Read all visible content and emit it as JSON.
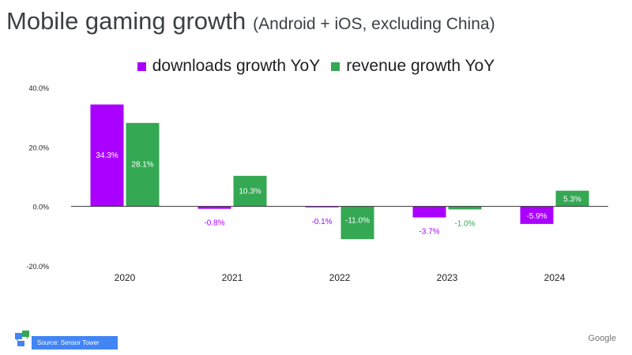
{
  "title": {
    "main": "Mobile gaming growth",
    "sub": "(Android + iOS, excluding China)"
  },
  "colors": {
    "downloads": "#aa00ff",
    "revenue": "#34a853",
    "source_badge": "#4285f4"
  },
  "chart_data": {
    "type": "bar",
    "title": "Mobile gaming growth (Android + iOS, excluding China)",
    "categories": [
      "2020",
      "2021",
      "2022",
      "2023",
      "2024"
    ],
    "series": [
      {
        "name": "downloads growth YoY",
        "color": "#aa00ff",
        "values": [
          34.3,
          -0.8,
          -0.1,
          -3.7,
          -5.9
        ],
        "labels": [
          "34.3%",
          "-0.8%",
          "-0.1%",
          "-3.7%",
          "-5.9%"
        ]
      },
      {
        "name": "revenue growth YoY",
        "color": "#34a853",
        "values": [
          28.1,
          10.3,
          -11.0,
          -1.0,
          5.3
        ],
        "labels": [
          "28.1%",
          "10.3%",
          "-11.0%",
          "-1.0%",
          "5.3%"
        ]
      }
    ],
    "yticks": [
      40,
      20,
      0,
      -20
    ],
    "ytick_labels": [
      "40.0%",
      "20.0%",
      "0.0%",
      "-20.0%"
    ],
    "ylim": [
      -20,
      40
    ],
    "xlabel": "",
    "ylabel": "",
    "grid": false,
    "legend": "top-center"
  },
  "footer": {
    "source": "Source: Sensor Tower",
    "brand": "Google",
    "logo_icon": "sensor-tower-logo"
  }
}
